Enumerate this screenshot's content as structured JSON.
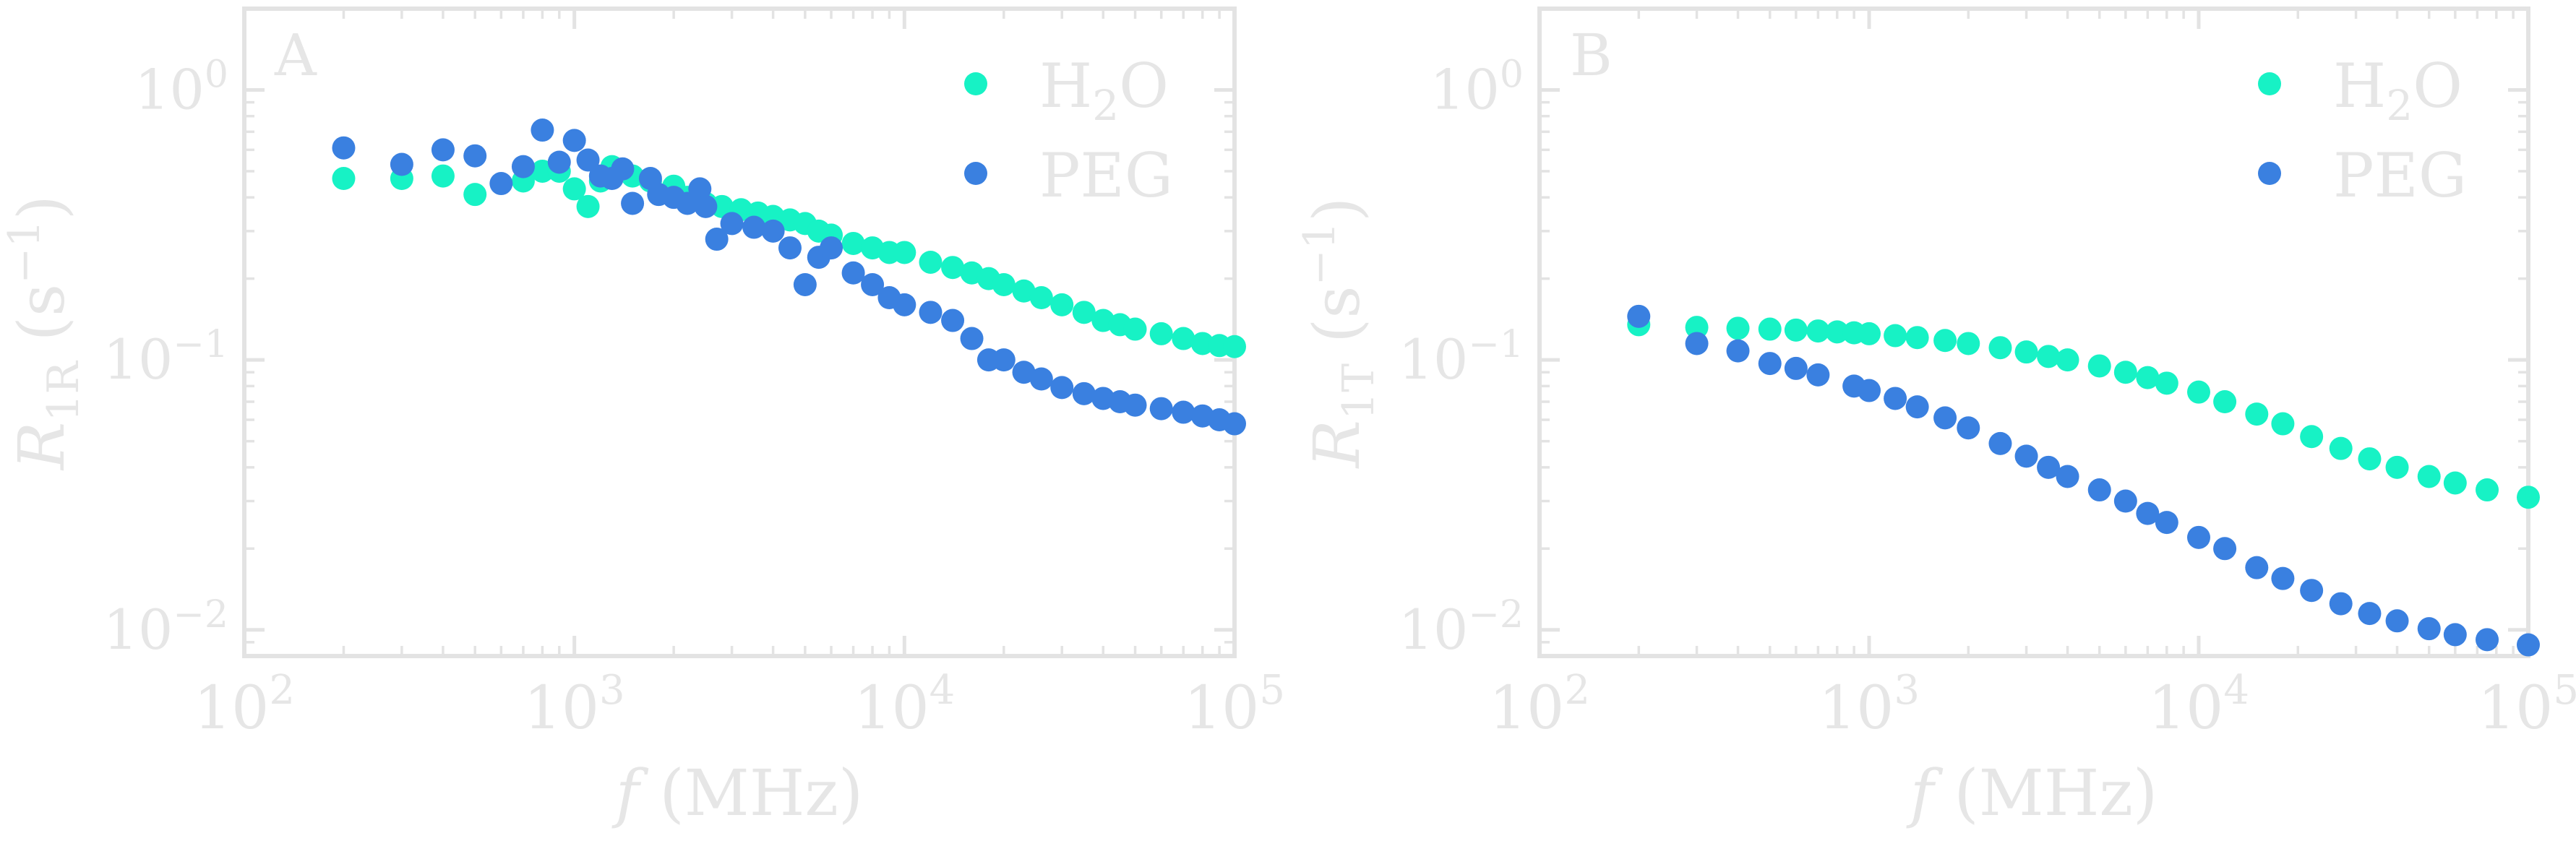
{
  "chart_data": [
    {
      "type": "scatter",
      "panel_label": "A",
      "xscale": "log",
      "yscale": "log",
      "xlim": [
        100,
        100000
      ],
      "ylim": [
        0.008,
        2.0
      ],
      "xlabel": "f (MHz)",
      "ylabel": "R1R (s−1)",
      "x_ticks": [
        100,
        1000,
        10000,
        100000
      ],
      "x_tick_labels": [
        {
          "base": "10",
          "exp": "2"
        },
        {
          "base": "10",
          "exp": "3"
        },
        {
          "base": "10",
          "exp": "4"
        },
        {
          "base": "10",
          "exp": "5"
        }
      ],
      "y_ticks": [
        1.0,
        0.1,
        0.01
      ],
      "y_tick_labels": [
        {
          "base": "10",
          "exp": "0"
        },
        {
          "base": "10",
          "exp": "−1"
        },
        {
          "base": "10",
          "exp": "−2"
        }
      ],
      "legend": "top-right",
      "series": [
        {
          "name": "H2O",
          "color": "#17f2c5",
          "points": [
            [
              200,
              0.47
            ],
            [
              300,
              0.47
            ],
            [
              400,
              0.48
            ],
            [
              500,
              0.41
            ],
            [
              700,
              0.46
            ],
            [
              800,
              0.5
            ],
            [
              900,
              0.5
            ],
            [
              1000,
              0.43
            ],
            [
              1100,
              0.37
            ],
            [
              1200,
              0.46
            ],
            [
              1300,
              0.52
            ],
            [
              1500,
              0.48
            ],
            [
              1700,
              0.46
            ],
            [
              2000,
              0.44
            ],
            [
              2200,
              0.4
            ],
            [
              2500,
              0.38
            ],
            [
              2800,
              0.37
            ],
            [
              3200,
              0.36
            ],
            [
              3600,
              0.35
            ],
            [
              4000,
              0.34
            ],
            [
              4500,
              0.33
            ],
            [
              5000,
              0.32
            ],
            [
              5500,
              0.3
            ],
            [
              6000,
              0.29
            ],
            [
              7000,
              0.27
            ],
            [
              8000,
              0.26
            ],
            [
              9000,
              0.25
            ],
            [
              10000,
              0.25
            ],
            [
              12000,
              0.23
            ],
            [
              14000,
              0.22
            ],
            [
              16000,
              0.21
            ],
            [
              18000,
              0.2
            ],
            [
              20000,
              0.19
            ],
            [
              23000,
              0.18
            ],
            [
              26000,
              0.17
            ],
            [
              30000,
              0.16
            ],
            [
              35000,
              0.15
            ],
            [
              40000,
              0.14
            ],
            [
              45000,
              0.135
            ],
            [
              50000,
              0.13
            ],
            [
              60000,
              0.125
            ],
            [
              70000,
              0.12
            ],
            [
              80000,
              0.115
            ],
            [
              90000,
              0.113
            ],
            [
              100000,
              0.112
            ]
          ]
        },
        {
          "name": "PEG",
          "color": "#3a80e0",
          "points": [
            [
              200,
              0.61
            ],
            [
              300,
              0.53
            ],
            [
              400,
              0.6
            ],
            [
              500,
              0.57
            ],
            [
              600,
              0.45
            ],
            [
              700,
              0.52
            ],
            [
              800,
              0.71
            ],
            [
              900,
              0.54
            ],
            [
              1000,
              0.65
            ],
            [
              1100,
              0.55
            ],
            [
              1200,
              0.48
            ],
            [
              1300,
              0.47
            ],
            [
              1400,
              0.51
            ],
            [
              1500,
              0.38
            ],
            [
              1700,
              0.47
            ],
            [
              1800,
              0.41
            ],
            [
              2000,
              0.4
            ],
            [
              2200,
              0.38
            ],
            [
              2400,
              0.43
            ],
            [
              2500,
              0.37
            ],
            [
              2700,
              0.28
            ],
            [
              3000,
              0.32
            ],
            [
              3500,
              0.31
            ],
            [
              4000,
              0.3
            ],
            [
              4500,
              0.26
            ],
            [
              5000,
              0.19
            ],
            [
              5500,
              0.24
            ],
            [
              6000,
              0.26
            ],
            [
              7000,
              0.21
            ],
            [
              8000,
              0.19
            ],
            [
              9000,
              0.17
            ],
            [
              10000,
              0.16
            ],
            [
              12000,
              0.15
            ],
            [
              14000,
              0.14
            ],
            [
              16000,
              0.12
            ],
            [
              18000,
              0.1
            ],
            [
              20000,
              0.1
            ],
            [
              23000,
              0.09
            ],
            [
              26000,
              0.085
            ],
            [
              30000,
              0.079
            ],
            [
              35000,
              0.075
            ],
            [
              40000,
              0.072
            ],
            [
              45000,
              0.07
            ],
            [
              50000,
              0.068
            ],
            [
              60000,
              0.066
            ],
            [
              70000,
              0.064
            ],
            [
              80000,
              0.062
            ],
            [
              90000,
              0.06
            ],
            [
              100000,
              0.058
            ]
          ]
        }
      ]
    },
    {
      "type": "scatter",
      "panel_label": "B",
      "xscale": "log",
      "yscale": "log",
      "xlim": [
        100,
        100000
      ],
      "ylim": [
        0.008,
        2.0
      ],
      "xlabel": "f (MHz)",
      "ylabel": "R1T (s−1)",
      "x_ticks": [
        100,
        1000,
        10000,
        100000
      ],
      "x_tick_labels": [
        {
          "base": "10",
          "exp": "2"
        },
        {
          "base": "10",
          "exp": "3"
        },
        {
          "base": "10",
          "exp": "4"
        },
        {
          "base": "10",
          "exp": "5"
        }
      ],
      "y_ticks": [
        1.0,
        0.1,
        0.01
      ],
      "y_tick_labels": [
        {
          "base": "10",
          "exp": "0"
        },
        {
          "base": "10",
          "exp": "−1"
        },
        {
          "base": "10",
          "exp": "−2"
        }
      ],
      "legend": "top-right",
      "series": [
        {
          "name": "H2O",
          "color": "#17f2c5",
          "points": [
            [
              200,
              0.135
            ],
            [
              300,
              0.132
            ],
            [
              400,
              0.131
            ],
            [
              500,
              0.13
            ],
            [
              600,
              0.129
            ],
            [
              700,
              0.128
            ],
            [
              800,
              0.127
            ],
            [
              900,
              0.126
            ],
            [
              1000,
              0.125
            ],
            [
              1200,
              0.123
            ],
            [
              1400,
              0.121
            ],
            [
              1700,
              0.118
            ],
            [
              2000,
              0.115
            ],
            [
              2500,
              0.111
            ],
            [
              3000,
              0.107
            ],
            [
              3500,
              0.103
            ],
            [
              4000,
              0.1
            ],
            [
              5000,
              0.095
            ],
            [
              6000,
              0.09
            ],
            [
              7000,
              0.086
            ],
            [
              8000,
              0.082
            ],
            [
              10000,
              0.076
            ],
            [
              12000,
              0.07
            ],
            [
              15000,
              0.063
            ],
            [
              18000,
              0.058
            ],
            [
              22000,
              0.052
            ],
            [
              27000,
              0.047
            ],
            [
              33000,
              0.043
            ],
            [
              40000,
              0.04
            ],
            [
              50000,
              0.037
            ],
            [
              60000,
              0.035
            ],
            [
              75000,
              0.033
            ],
            [
              100000,
              0.031
            ]
          ]
        },
        {
          "name": "PEG",
          "color": "#3a80e0",
          "points": [
            [
              200,
              0.145
            ],
            [
              300,
              0.115
            ],
            [
              400,
              0.108
            ],
            [
              500,
              0.097
            ],
            [
              600,
              0.093
            ],
            [
              700,
              0.088
            ],
            [
              900,
              0.08
            ],
            [
              1000,
              0.077
            ],
            [
              1200,
              0.072
            ],
            [
              1400,
              0.067
            ],
            [
              1700,
              0.061
            ],
            [
              2000,
              0.056
            ],
            [
              2500,
              0.049
            ],
            [
              3000,
              0.044
            ],
            [
              3500,
              0.04
            ],
            [
              4000,
              0.037
            ],
            [
              5000,
              0.033
            ],
            [
              6000,
              0.03
            ],
            [
              7000,
              0.027
            ],
            [
              8000,
              0.025
            ],
            [
              10000,
              0.022
            ],
            [
              12000,
              0.02
            ],
            [
              15000,
              0.017
            ],
            [
              18000,
              0.0155
            ],
            [
              22000,
              0.014
            ],
            [
              27000,
              0.0125
            ],
            [
              33000,
              0.0115
            ],
            [
              40000,
              0.0108
            ],
            [
              50000,
              0.0101
            ],
            [
              60000,
              0.0096
            ],
            [
              75000,
              0.0092
            ],
            [
              100000,
              0.0088
            ]
          ]
        }
      ]
    }
  ]
}
